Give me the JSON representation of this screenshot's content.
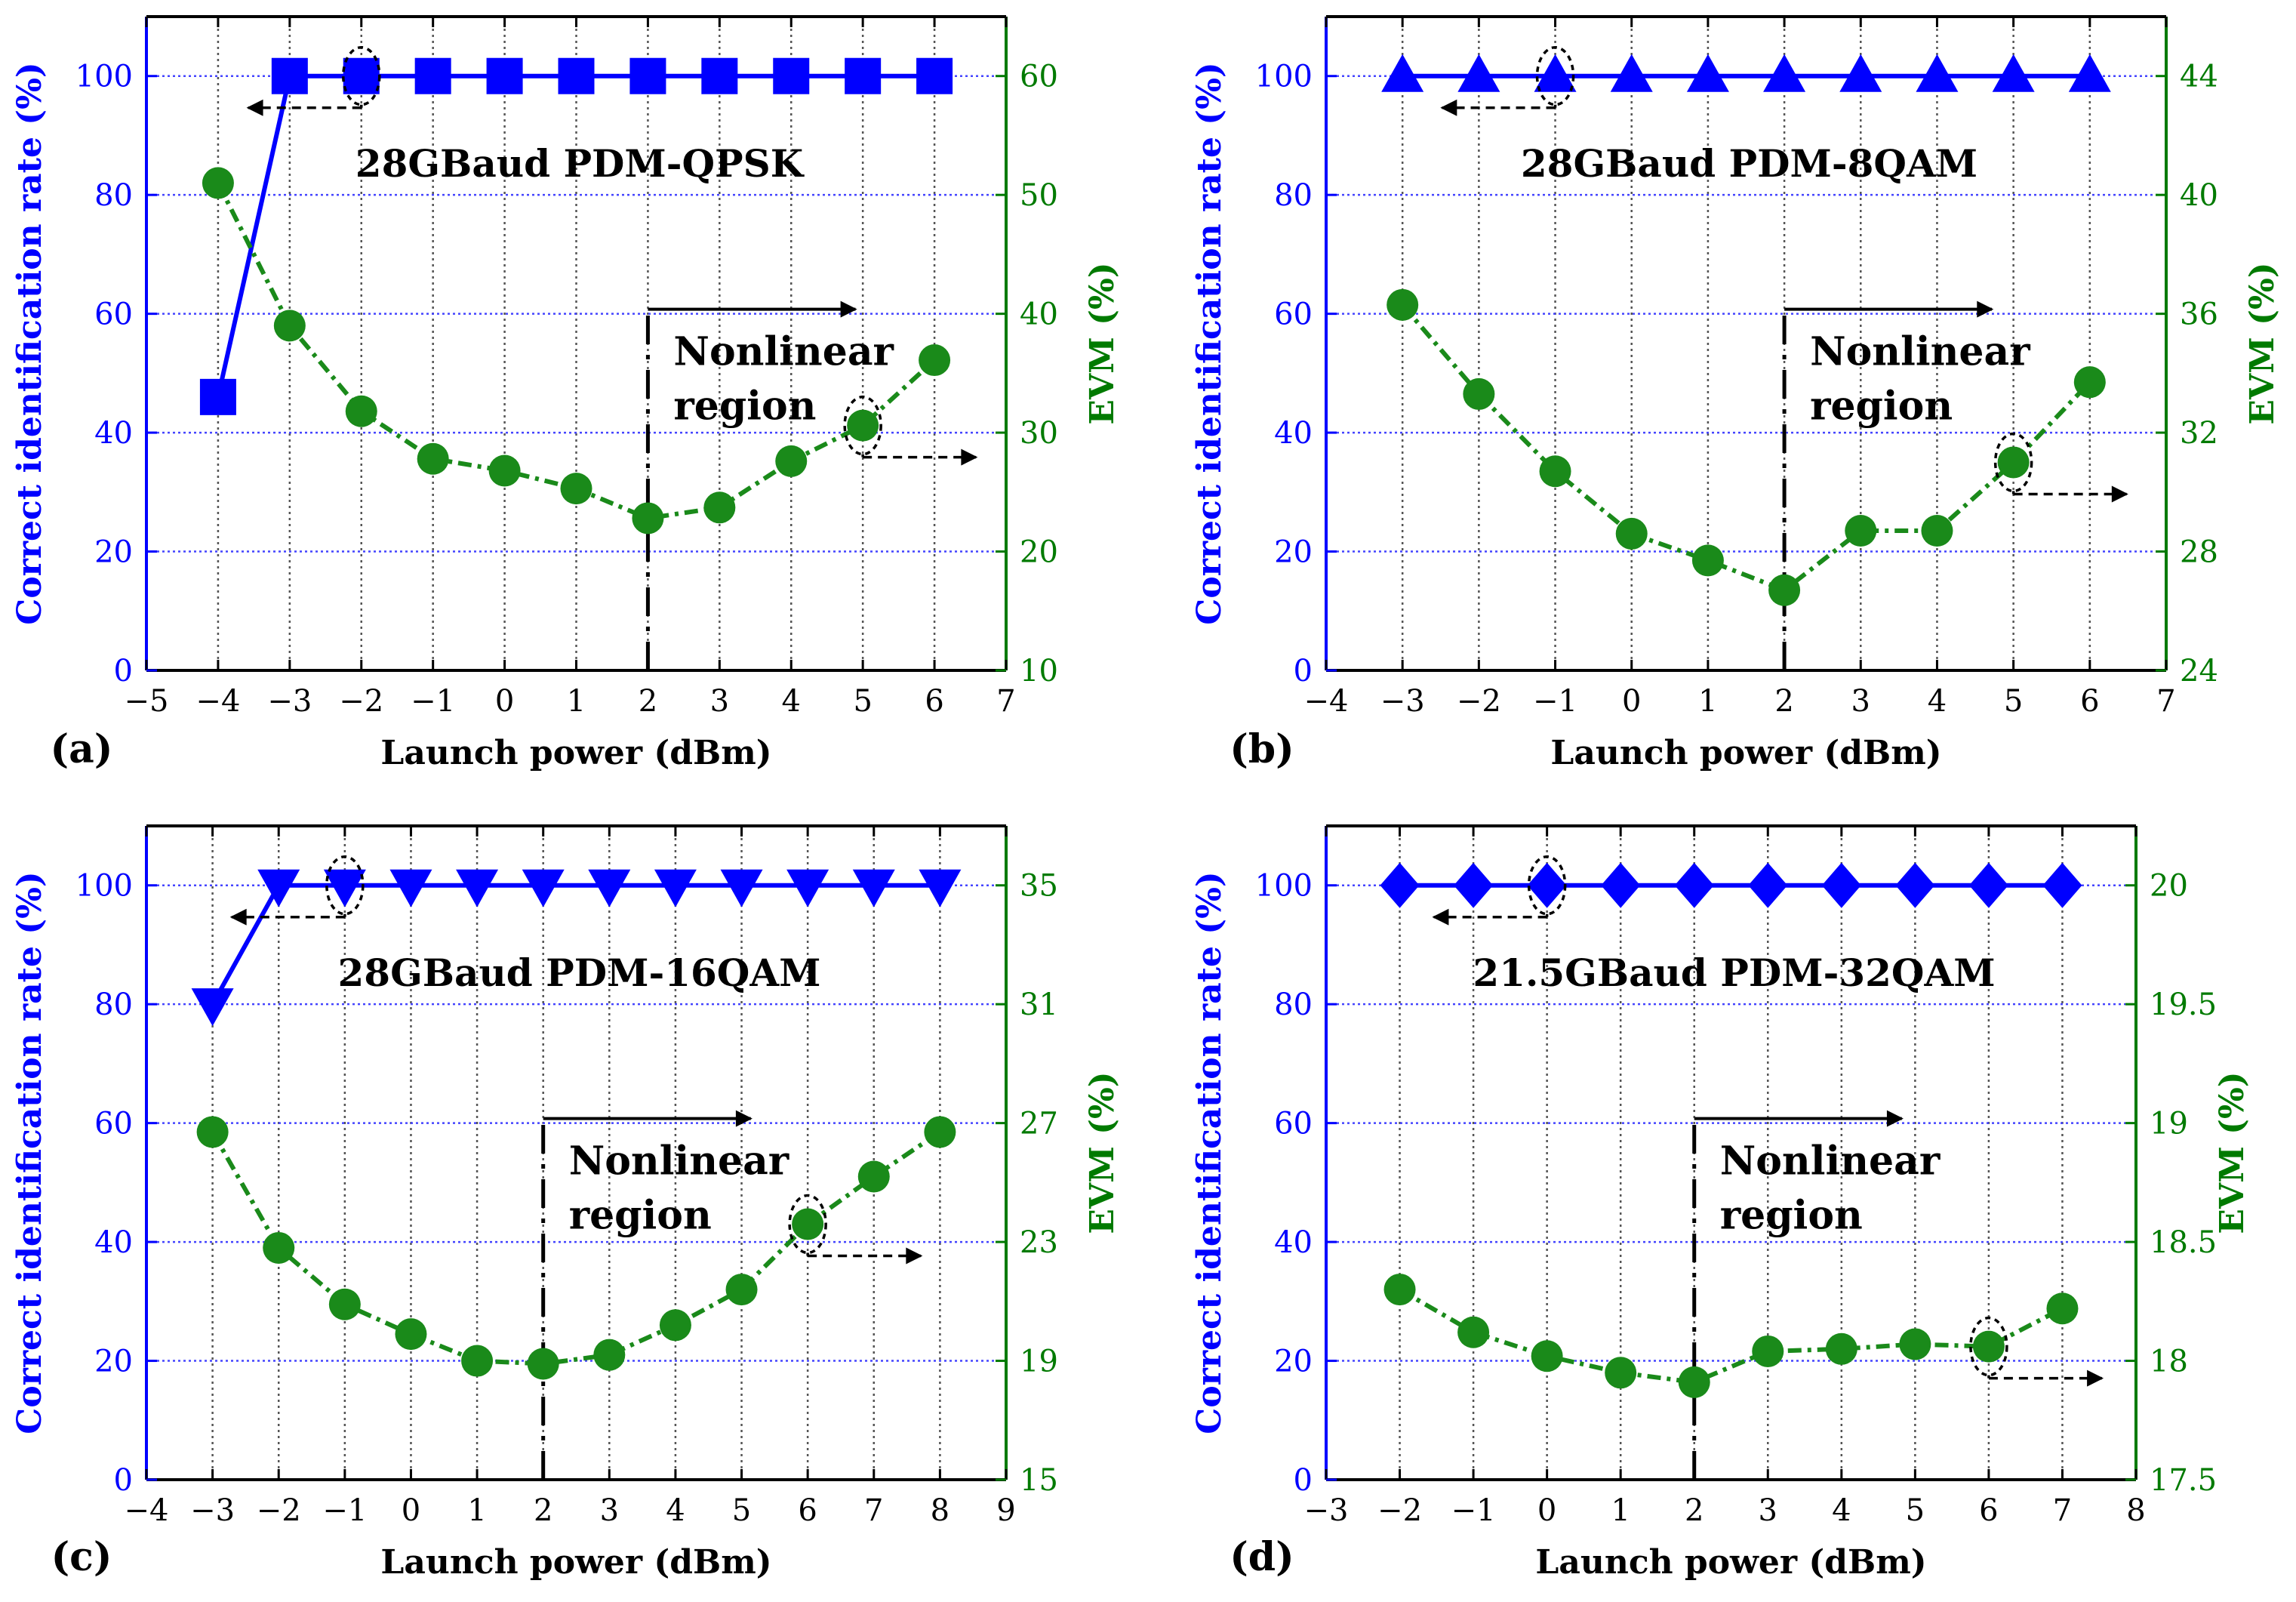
{
  "colors": {
    "left_axis": "#0000ff",
    "right_axis": "#007a00",
    "evm_series": "#1a8a1a",
    "rate_series": "#0000ff",
    "grid_blue": "#4444ff",
    "grid_black": "#555555"
  },
  "chart_data": [
    {
      "type": "line",
      "panel_label": "(a)",
      "title": "28GBaud PDM-QPSK",
      "xlabel": "Launch power (dBm)",
      "ylabel_left": "Correct identification rate (%)",
      "ylabel_right": "EVM (%)",
      "xlim": [
        -5,
        7
      ],
      "xticks": [
        -5,
        -4,
        -3,
        -2,
        -1,
        0,
        1,
        2,
        3,
        4,
        5,
        6,
        7
      ],
      "xtick_labels": [
        "−5",
        "−4",
        "−3",
        "−2",
        "−1",
        "0",
        "1",
        "2",
        "3",
        "4",
        "5",
        "6",
        "7"
      ],
      "ylim_left": [
        0,
        110
      ],
      "yticks_left": [
        0,
        20,
        40,
        60,
        80,
        100
      ],
      "ytick_labels_left": [
        "0",
        "20",
        "40",
        "60",
        "80",
        "100"
      ],
      "ylim_right": [
        10,
        65
      ],
      "yticks_right": [
        10,
        20,
        30,
        40,
        50,
        60
      ],
      "ytick_labels_right": [
        "10",
        "20",
        "30",
        "40",
        "50",
        "60"
      ],
      "marker": "square",
      "series": [
        {
          "name": "Correct identification rate",
          "axis": "left",
          "x": [
            -4,
            -3,
            -2,
            -1,
            0,
            1,
            2,
            3,
            4,
            5,
            6
          ],
          "values": [
            46,
            100,
            100,
            100,
            100,
            100,
            100,
            100,
            100,
            100,
            100
          ]
        },
        {
          "name": "EVM",
          "axis": "right",
          "x": [
            -4,
            -3,
            -2,
            -1,
            0,
            1,
            2,
            3,
            4,
            5,
            6
          ],
          "values": [
            51,
            39,
            31.8,
            27.8,
            26.8,
            25.3,
            22.8,
            23.7,
            27.6,
            30.6,
            36.1
          ]
        }
      ],
      "nonlinear_start_x": 2,
      "nonlinear_text": [
        "Nonlinear",
        "region"
      ],
      "left_circle_x": -2,
      "right_circle_x": 5
    },
    {
      "type": "line",
      "panel_label": "(b)",
      "title": "28GBaud PDM-8QAM",
      "xlabel": "Launch power (dBm)",
      "ylabel_left": "Correct identification rate (%)",
      "ylabel_right": "EVM (%)",
      "xlim": [
        -4,
        7
      ],
      "xticks": [
        -4,
        -3,
        -2,
        -1,
        0,
        1,
        2,
        3,
        4,
        5,
        6,
        7
      ],
      "xtick_labels": [
        "−4",
        "−3",
        "−2",
        "−1",
        "0",
        "1",
        "2",
        "3",
        "4",
        "5",
        "6",
        "7"
      ],
      "ylim_left": [
        0,
        110
      ],
      "yticks_left": [
        0,
        20,
        40,
        60,
        80,
        100
      ],
      "ytick_labels_left": [
        "0",
        "20",
        "40",
        "60",
        "80",
        "100"
      ],
      "ylim_right": [
        24,
        46
      ],
      "yticks_right": [
        24,
        28,
        32,
        36,
        40,
        44
      ],
      "ytick_labels_right": [
        "24",
        "28",
        "32",
        "36",
        "40",
        "44"
      ],
      "marker": "triangle-up",
      "series": [
        {
          "name": "Correct identification rate",
          "axis": "left",
          "x": [
            -3,
            -2,
            -1,
            0,
            1,
            2,
            3,
            4,
            5,
            6
          ],
          "values": [
            100,
            100,
            100,
            100,
            100,
            100,
            100,
            100,
            100,
            100
          ]
        },
        {
          "name": "EVM",
          "axis": "right",
          "x": [
            -3,
            -2,
            -1,
            0,
            1,
            2,
            3,
            4,
            5,
            6
          ],
          "values": [
            36.3,
            33.3,
            30.7,
            28.6,
            27.7,
            26.7,
            28.7,
            28.7,
            31,
            33.7
          ]
        }
      ],
      "nonlinear_start_x": 2,
      "nonlinear_text": [
        "Nonlinear",
        "region"
      ],
      "left_circle_x": -1,
      "right_circle_x": 5
    },
    {
      "type": "line",
      "panel_label": "(c)",
      "title": "28GBaud PDM-16QAM",
      "xlabel": "Launch power (dBm)",
      "ylabel_left": "Correct identification rate (%)",
      "ylabel_right": "EVM (%)",
      "xlim": [
        -4,
        9
      ],
      "xticks": [
        -4,
        -3,
        -2,
        -1,
        0,
        1,
        2,
        3,
        4,
        5,
        6,
        7,
        8,
        9
      ],
      "xtick_labels": [
        "−4",
        "−3",
        "−2",
        "−1",
        "0",
        "1",
        "2",
        "3",
        "4",
        "5",
        "6",
        "7",
        "8",
        "9"
      ],
      "ylim_left": [
        0,
        110
      ],
      "yticks_left": [
        0,
        20,
        40,
        60,
        80,
        100
      ],
      "ytick_labels_left": [
        "0",
        "20",
        "40",
        "60",
        "80",
        "100"
      ],
      "ylim_right": [
        15,
        37
      ],
      "yticks_right": [
        15,
        19,
        23,
        27,
        31,
        35
      ],
      "ytick_labels_right": [
        "15",
        "19",
        "23",
        "27",
        "31",
        "35"
      ],
      "marker": "triangle-down",
      "series": [
        {
          "name": "Correct identification rate",
          "axis": "left",
          "x": [
            -3,
            -2,
            -1,
            0,
            1,
            2,
            3,
            4,
            5,
            6,
            7,
            8
          ],
          "values": [
            80,
            100,
            100,
            100,
            100,
            100,
            100,
            100,
            100,
            100,
            100,
            100
          ]
        },
        {
          "name": "EVM",
          "axis": "right",
          "x": [
            -3,
            -2,
            -1,
            0,
            1,
            2,
            3,
            4,
            5,
            6,
            7,
            8
          ],
          "values": [
            26.7,
            22.8,
            20.9,
            19.9,
            19,
            18.9,
            19.2,
            20.2,
            21.4,
            23.6,
            25.2,
            26.7
          ]
        }
      ],
      "nonlinear_start_x": 2,
      "nonlinear_text": [
        "Nonlinear",
        "region"
      ],
      "left_circle_x": -1,
      "right_circle_x": 6
    },
    {
      "type": "line",
      "panel_label": "(d)",
      "title": "21.5GBaud PDM-32QAM",
      "xlabel": "Launch power (dBm)",
      "ylabel_left": "Correct identification rate (%)",
      "ylabel_right": "EVM (%)",
      "xlim": [
        -3,
        8
      ],
      "xticks": [
        -3,
        -2,
        -1,
        0,
        1,
        2,
        3,
        4,
        5,
        6,
        7,
        8
      ],
      "xtick_labels": [
        "−3",
        "−2",
        "−1",
        "0",
        "1",
        "2",
        "3",
        "4",
        "5",
        "6",
        "7",
        "8"
      ],
      "ylim_left": [
        0,
        110
      ],
      "yticks_left": [
        0,
        20,
        40,
        60,
        80,
        100
      ],
      "ytick_labels_left": [
        "0",
        "20",
        "40",
        "60",
        "80",
        "100"
      ],
      "ylim_right": [
        17.5,
        20.25
      ],
      "yticks_right": [
        17.5,
        18,
        18.5,
        19,
        19.5,
        20
      ],
      "ytick_labels_right": [
        "17.5",
        "18",
        "18.5",
        "19",
        "19.5",
        "20"
      ],
      "marker": "diamond",
      "series": [
        {
          "name": "Correct identification rate",
          "axis": "left",
          "x": [
            -2,
            -1,
            0,
            1,
            2,
            3,
            4,
            5,
            6,
            7
          ],
          "values": [
            100,
            100,
            100,
            100,
            100,
            100,
            100,
            100,
            100,
            100
          ]
        },
        {
          "name": "EVM",
          "axis": "right",
          "x": [
            -2,
            -1,
            0,
            1,
            2,
            3,
            4,
            5,
            6,
            7
          ],
          "values": [
            18.3,
            18.12,
            18.02,
            17.95,
            17.91,
            18.04,
            18.05,
            18.07,
            18.06,
            18.22
          ]
        }
      ],
      "nonlinear_start_x": 2,
      "nonlinear_text": [
        "Nonlinear",
        "region"
      ],
      "left_circle_x": 0,
      "right_circle_x": 6
    }
  ]
}
